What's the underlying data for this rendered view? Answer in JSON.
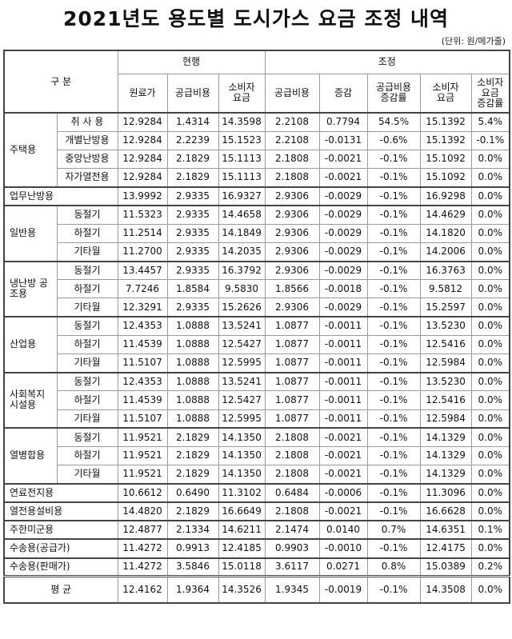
{
  "title": "2021년도 용도별 도시가스 요금 조정 내역",
  "unit": "(단위: 원/메가줄)",
  "header": {
    "category": "구 분",
    "current": "현행",
    "adjust": "조정",
    "cols": {
      "raw": "원료가",
      "supply": "공급비용",
      "consumer1": "소비자",
      "consumer2": "요금",
      "adj_supply": "공급비용",
      "change": "증감",
      "supply_rate1": "공급비용",
      "supply_rate2": "증감률",
      "adj_consumer1": "소비자",
      "adj_consumer2": "요금",
      "consumer_rate1": "소비자",
      "consumer_rate2": "요금",
      "consumer_rate3": "증감률"
    }
  },
  "rows": [
    {
      "group": "주택용",
      "sub": "취 사 용",
      "raw": "12.9284",
      "supply": "1.4314",
      "consumer": "14.3598",
      "adj_supply": "2.2108",
      "change": "0.7794",
      "supply_rate": "54.5%",
      "adj_consumer": "15.1392",
      "consumer_rate": "5.4%"
    },
    {
      "group": "",
      "sub": "개별난방용",
      "raw": "12.9284",
      "supply": "2.2239",
      "consumer": "15.1523",
      "adj_supply": "2.2108",
      "change": "-0.0131",
      "supply_rate": "-0.6%",
      "adj_consumer": "15.1392",
      "consumer_rate": "-0.1%"
    },
    {
      "group": "",
      "sub": "중앙난방용",
      "raw": "12.9284",
      "supply": "2.1829",
      "consumer": "15.1113",
      "adj_supply": "2.1808",
      "change": "-0.0021",
      "supply_rate": "-0.1%",
      "adj_consumer": "15.1092",
      "consumer_rate": "0.0%"
    },
    {
      "group": "",
      "sub": "자가열전용",
      "raw": "12.9284",
      "supply": "2.1829",
      "consumer": "15.1113",
      "adj_supply": "2.1808",
      "change": "-0.0021",
      "supply_rate": "-0.1%",
      "adj_consumer": "15.1092",
      "consumer_rate": "0.0%"
    },
    {
      "group": "업무난방용",
      "sub": "",
      "raw": "13.9992",
      "supply": "2.9335",
      "consumer": "16.9327",
      "adj_supply": "2.9306",
      "change": "-0.0029",
      "supply_rate": "-0.1%",
      "adj_consumer": "16.9298",
      "consumer_rate": "0.0%"
    },
    {
      "group": "일반용",
      "sub": "동절기",
      "raw": "11.5323",
      "supply": "2.9335",
      "consumer": "14.4658",
      "adj_supply": "2.9306",
      "change": "-0.0029",
      "supply_rate": "-0.1%",
      "adj_consumer": "14.4629",
      "consumer_rate": "0.0%"
    },
    {
      "group": "",
      "sub": "하절기",
      "raw": "11.2514",
      "supply": "2.9335",
      "consumer": "14.1849",
      "adj_supply": "2.9306",
      "change": "-0.0029",
      "supply_rate": "-0.1%",
      "adj_consumer": "14.1820",
      "consumer_rate": "0.0%"
    },
    {
      "group": "",
      "sub": "기타월",
      "raw": "11.2700",
      "supply": "2.9335",
      "consumer": "14.2035",
      "adj_supply": "2.9306",
      "change": "-0.0029",
      "supply_rate": "-0.1%",
      "adj_consumer": "14.2006",
      "consumer_rate": "0.0%"
    },
    {
      "group": "냉난방 공조용",
      "sub": "동절기",
      "raw": "13.4457",
      "supply": "2.9335",
      "consumer": "16.3792",
      "adj_supply": "2.9306",
      "change": "-0.0029",
      "supply_rate": "-0.1%",
      "adj_consumer": "16.3763",
      "consumer_rate": "0.0%"
    },
    {
      "group": "",
      "sub": "하절기",
      "raw": "7.7246",
      "supply": "1.8584",
      "consumer": "9.5830",
      "adj_supply": "1.8566",
      "change": "-0.0018",
      "supply_rate": "-0.1%",
      "adj_consumer": "9.5812",
      "consumer_rate": "0.0%"
    },
    {
      "group": "",
      "sub": "기타월",
      "raw": "12.3291",
      "supply": "2.9335",
      "consumer": "15.2626",
      "adj_supply": "2.9306",
      "change": "-0.0029",
      "supply_rate": "-0.1%",
      "adj_consumer": "15.2597",
      "consumer_rate": "0.0%"
    },
    {
      "group": "산업용",
      "sub": "동절기",
      "raw": "12.4353",
      "supply": "1.0888",
      "consumer": "13.5241",
      "adj_supply": "1.0877",
      "change": "-0.0011",
      "supply_rate": "-0.1%",
      "adj_consumer": "13.5230",
      "consumer_rate": "0.0%"
    },
    {
      "group": "",
      "sub": "하절기",
      "raw": "11.4539",
      "supply": "1.0888",
      "consumer": "12.5427",
      "adj_supply": "1.0877",
      "change": "-0.0011",
      "supply_rate": "-0.1%",
      "adj_consumer": "12.5416",
      "consumer_rate": "0.0%"
    },
    {
      "group": "",
      "sub": "기타월",
      "raw": "11.5107",
      "supply": "1.0888",
      "consumer": "12.5995",
      "adj_supply": "1.0877",
      "change": "-0.0011",
      "supply_rate": "-0.1%",
      "adj_consumer": "12.5984",
      "consumer_rate": "0.0%"
    },
    {
      "group": "사회복지 시설용",
      "sub": "동절기",
      "raw": "12.4353",
      "supply": "1.0888",
      "consumer": "13.5241",
      "adj_supply": "1.0877",
      "change": "-0.0011",
      "supply_rate": "-0.1%",
      "adj_consumer": "13.5230",
      "consumer_rate": "0.0%"
    },
    {
      "group": "",
      "sub": "하절기",
      "raw": "11.4539",
      "supply": "1.0888",
      "consumer": "12.5427",
      "adj_supply": "1.0877",
      "change": "-0.0011",
      "supply_rate": "-0.1%",
      "adj_consumer": "12.5416",
      "consumer_rate": "0.0%"
    },
    {
      "group": "",
      "sub": "기타월",
      "raw": "11.5107",
      "supply": "1.0888",
      "consumer": "12.5995",
      "adj_supply": "1.0877",
      "change": "-0.0011",
      "supply_rate": "-0.1%",
      "adj_consumer": "12.5984",
      "consumer_rate": "0.0%"
    },
    {
      "group": "열병합용",
      "sub": "동절기",
      "raw": "11.9521",
      "supply": "2.1829",
      "consumer": "14.1350",
      "adj_supply": "2.1808",
      "change": "-0.0021",
      "supply_rate": "-0.1%",
      "adj_consumer": "14.1329",
      "consumer_rate": "0.0%"
    },
    {
      "group": "",
      "sub": "하절기",
      "raw": "11.9521",
      "supply": "2.1829",
      "consumer": "14.1350",
      "adj_supply": "2.1808",
      "change": "-0.0021",
      "supply_rate": "-0.1%",
      "adj_consumer": "14.1329",
      "consumer_rate": "0.0%"
    },
    {
      "group": "",
      "sub": "기타월",
      "raw": "11.9521",
      "supply": "2.1829",
      "consumer": "14.1350",
      "adj_supply": "2.1808",
      "change": "-0.0021",
      "supply_rate": "-0.1%",
      "adj_consumer": "14.1329",
      "consumer_rate": "0.0%"
    },
    {
      "group": "연료전지용",
      "sub": "",
      "raw": "10.6612",
      "supply": "0.6490",
      "consumer": "11.3102",
      "adj_supply": "0.6484",
      "change": "-0.0006",
      "supply_rate": "-0.1%",
      "adj_consumer": "11.3096",
      "consumer_rate": "0.0%"
    },
    {
      "group": "열전용설비용",
      "sub": "",
      "raw": "14.4820",
      "supply": "2.1829",
      "consumer": "16.6649",
      "adj_supply": "2.1808",
      "change": "-0.0021",
      "supply_rate": "-0.1%",
      "adj_consumer": "16.6628",
      "consumer_rate": "0.0%"
    },
    {
      "group": "주한미군용",
      "sub": "",
      "raw": "12.4877",
      "supply": "2.1334",
      "consumer": "14.6211",
      "adj_supply": "2.1474",
      "change": "0.0140",
      "supply_rate": "0.7%",
      "adj_consumer": "14.6351",
      "consumer_rate": "0.1%"
    },
    {
      "group": "수송용(공급가)",
      "sub": "",
      "raw": "11.4272",
      "supply": "0.9913",
      "consumer": "12.4185",
      "adj_supply": "0.9903",
      "change": "-0.0010",
      "supply_rate": "-0.1%",
      "adj_consumer": "12.4175",
      "consumer_rate": "0.0%"
    },
    {
      "group": "수송용(판매가)",
      "sub": "",
      "raw": "11.4272",
      "supply": "3.5846",
      "consumer": "15.0118",
      "adj_supply": "3.6117",
      "change": "0.0271",
      "supply_rate": "0.8%",
      "adj_consumer": "15.0389",
      "consumer_rate": "0.2%"
    }
  ],
  "average": {
    "label": "평 균",
    "raw": "12.4162",
    "supply": "1.9364",
    "consumer": "14.3526",
    "adj_supply": "1.9345",
    "change": "-0.0019",
    "supply_rate": "-0.1%",
    "adj_consumer": "14.3508",
    "consumer_rate": "0.0%"
  }
}
